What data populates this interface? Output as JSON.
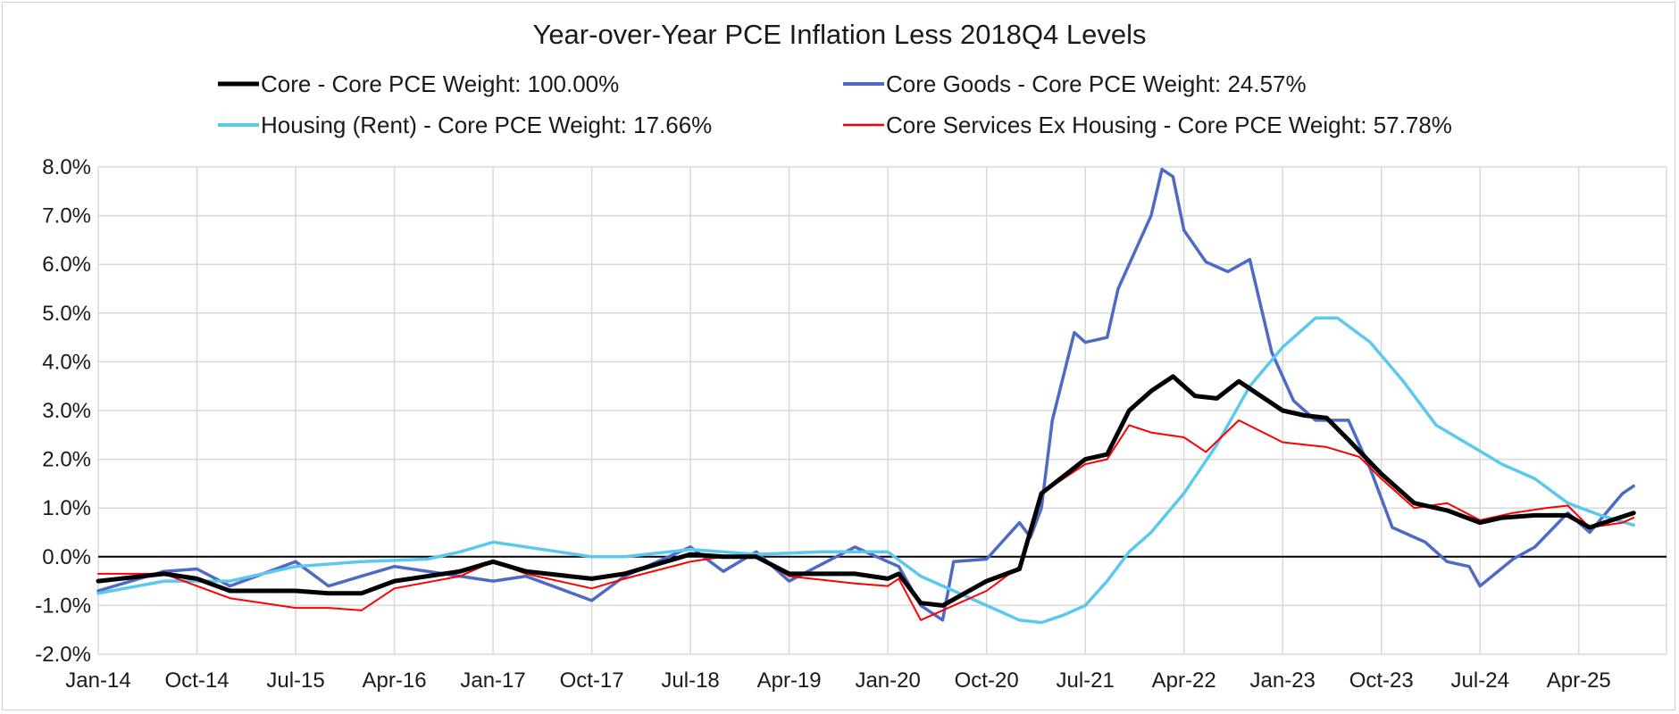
{
  "chart_data": {
    "type": "line",
    "title": "Year-over-Year PCE Inflation Less 2018Q4 Levels",
    "xlabel": "",
    "ylabel": "",
    "ylim": [
      -2.0,
      8.0
    ],
    "xlim": [
      "Jan-14",
      "Dec-25"
    ],
    "y_tick_labels": [
      "8.0%",
      "7.0%",
      "6.0%",
      "5.0%",
      "4.0%",
      "3.0%",
      "2.0%",
      "1.0%",
      "0.0%",
      "-1.0%",
      "-2.0%"
    ],
    "x_tick_labels": [
      "Jan-14",
      "Oct-14",
      "Jul-15",
      "Apr-16",
      "Jan-17",
      "Oct-17",
      "Jul-18",
      "Apr-19",
      "Jan-20",
      "Oct-20",
      "Jul-21",
      "Apr-22",
      "Jan-23",
      "Oct-23",
      "Jul-24",
      "Apr-25"
    ],
    "grid": "both",
    "legend_position": "top",
    "series": [
      {
        "name": "Core - Core PCE Weight: 100.00%",
        "color": "#000000",
        "points": [
          [
            "Jan-14",
            -0.5
          ],
          [
            "Jul-14",
            -0.35
          ],
          [
            "Oct-14",
            -0.45
          ],
          [
            "Jan-15",
            -0.7
          ],
          [
            "Jul-15",
            -0.7
          ],
          [
            "Oct-15",
            -0.75
          ],
          [
            "Jan-16",
            -0.75
          ],
          [
            "Apr-16",
            -0.5
          ],
          [
            "Oct-16",
            -0.3
          ],
          [
            "Jan-17",
            -0.1
          ],
          [
            "Apr-17",
            -0.3
          ],
          [
            "Oct-17",
            -0.45
          ],
          [
            "Jan-18",
            -0.35
          ],
          [
            "Jul-18",
            0.05
          ],
          [
            "Oct-18",
            0.0
          ],
          [
            "Jan-19",
            0.0
          ],
          [
            "Apr-19",
            -0.35
          ],
          [
            "Oct-19",
            -0.35
          ],
          [
            "Jan-20",
            -0.45
          ],
          [
            "Feb-20",
            -0.35
          ],
          [
            "Apr-20",
            -0.95
          ],
          [
            "Jun-20",
            -1.0
          ],
          [
            "Oct-20",
            -0.5
          ],
          [
            "Jan-21",
            -0.25
          ],
          [
            "Mar-21",
            1.3
          ],
          [
            "Jul-21",
            2.0
          ],
          [
            "Sep-21",
            2.1
          ],
          [
            "Nov-21",
            3.0
          ],
          [
            "Jan-22",
            3.4
          ],
          [
            "Mar-22",
            3.7
          ],
          [
            "May-22",
            3.3
          ],
          [
            "Jul-22",
            3.25
          ],
          [
            "Sep-22",
            3.6
          ],
          [
            "Jan-23",
            3.0
          ],
          [
            "Mar-23",
            2.9
          ],
          [
            "May-23",
            2.85
          ],
          [
            "Jul-23",
            2.4
          ],
          [
            "Oct-23",
            1.7
          ],
          [
            "Jan-24",
            1.1
          ],
          [
            "Apr-24",
            0.95
          ],
          [
            "Jul-24",
            0.7
          ],
          [
            "Sep-24",
            0.8
          ],
          [
            "Dec-24",
            0.85
          ],
          [
            "Mar-25",
            0.85
          ],
          [
            "May-25",
            0.6
          ],
          [
            "Jul-25",
            0.75
          ],
          [
            "Sep-25",
            0.9
          ]
        ]
      },
      {
        "name": "Core Goods - Core PCE Weight: 24.57%",
        "color": "#4f69c6",
        "points": [
          [
            "Jan-14",
            -0.7
          ],
          [
            "Jul-14",
            -0.3
          ],
          [
            "Oct-14",
            -0.25
          ],
          [
            "Jan-15",
            -0.6
          ],
          [
            "Jul-15",
            -0.1
          ],
          [
            "Oct-15",
            -0.6
          ],
          [
            "Jan-16",
            -0.4
          ],
          [
            "Apr-16",
            -0.2
          ],
          [
            "Oct-16",
            -0.4
          ],
          [
            "Jan-17",
            -0.5
          ],
          [
            "Apr-17",
            -0.4
          ],
          [
            "Oct-17",
            -0.9
          ],
          [
            "Jan-18",
            -0.4
          ],
          [
            "Jul-18",
            0.2
          ],
          [
            "Oct-18",
            -0.3
          ],
          [
            "Jan-19",
            0.1
          ],
          [
            "Apr-19",
            -0.5
          ],
          [
            "Oct-19",
            0.2
          ],
          [
            "Jan-20",
            -0.1
          ],
          [
            "Feb-20",
            -0.2
          ],
          [
            "Apr-20",
            -1.0
          ],
          [
            "Jun-20",
            -1.3
          ],
          [
            "Jul-20",
            -0.1
          ],
          [
            "Oct-20",
            -0.05
          ],
          [
            "Jan-21",
            0.7
          ],
          [
            "Feb-21",
            0.4
          ],
          [
            "Mar-21",
            1.0
          ],
          [
            "Apr-21",
            2.8
          ],
          [
            "Jun-21",
            4.6
          ],
          [
            "Jul-21",
            4.4
          ],
          [
            "Sep-21",
            4.5
          ],
          [
            "Oct-21",
            5.5
          ],
          [
            "Jan-22",
            7.0
          ],
          [
            "Feb-22",
            7.95
          ],
          [
            "Mar-22",
            7.8
          ],
          [
            "Apr-22",
            6.7
          ],
          [
            "Jun-22",
            6.05
          ],
          [
            "Aug-22",
            5.85
          ],
          [
            "Oct-22",
            6.1
          ],
          [
            "Dec-22",
            4.2
          ],
          [
            "Feb-23",
            3.2
          ],
          [
            "Apr-23",
            2.8
          ],
          [
            "Jul-23",
            2.8
          ],
          [
            "Sep-23",
            1.8
          ],
          [
            "Nov-23",
            0.6
          ],
          [
            "Feb-24",
            0.3
          ],
          [
            "Apr-24",
            -0.1
          ],
          [
            "Jun-24",
            -0.2
          ],
          [
            "Jul-24",
            -0.6
          ],
          [
            "Oct-24",
            -0.05
          ],
          [
            "Dec-24",
            0.2
          ],
          [
            "Mar-25",
            0.9
          ],
          [
            "May-25",
            0.5
          ],
          [
            "Aug-25",
            1.3
          ],
          [
            "Sep-25",
            1.45
          ]
        ]
      },
      {
        "name": "Housing (Rent) - Core PCE Weight: 17.66%",
        "color": "#5bc8ee",
        "points": [
          [
            "Jan-14",
            -0.75
          ],
          [
            "Jul-14",
            -0.5
          ],
          [
            "Jan-15",
            -0.5
          ],
          [
            "Jul-15",
            -0.2
          ],
          [
            "Jan-16",
            -0.1
          ],
          [
            "Jul-16",
            -0.05
          ],
          [
            "Oct-16",
            0.1
          ],
          [
            "Jan-17",
            0.3
          ],
          [
            "Jul-17",
            0.1
          ],
          [
            "Oct-17",
            0.0
          ],
          [
            "Jan-18",
            0.0
          ],
          [
            "Jul-18",
            0.15
          ],
          [
            "Jan-19",
            0.05
          ],
          [
            "Jul-19",
            0.1
          ],
          [
            "Jan-20",
            0.1
          ],
          [
            "Apr-20",
            -0.4
          ],
          [
            "Jul-20",
            -0.7
          ],
          [
            "Oct-20",
            -1.0
          ],
          [
            "Jan-21",
            -1.3
          ],
          [
            "Mar-21",
            -1.35
          ],
          [
            "May-21",
            -1.2
          ],
          [
            "Jul-21",
            -1.0
          ],
          [
            "Sep-21",
            -0.5
          ],
          [
            "Nov-21",
            0.1
          ],
          [
            "Jan-22",
            0.5
          ],
          [
            "Apr-22",
            1.3
          ],
          [
            "Jul-22",
            2.3
          ],
          [
            "Oct-22",
            3.5
          ],
          [
            "Jan-23",
            4.3
          ],
          [
            "Apr-23",
            4.9
          ],
          [
            "Jun-23",
            4.9
          ],
          [
            "Sep-23",
            4.4
          ],
          [
            "Dec-23",
            3.6
          ],
          [
            "Mar-24",
            2.7
          ],
          [
            "Jun-24",
            2.3
          ],
          [
            "Sep-24",
            1.9
          ],
          [
            "Dec-24",
            1.6
          ],
          [
            "Mar-25",
            1.1
          ],
          [
            "Jun-25",
            0.85
          ],
          [
            "Sep-25",
            0.65
          ]
        ]
      },
      {
        "name": "Core Services Ex Housing - Core PCE Weight: 57.78%",
        "color": "#ff0000",
        "points": [
          [
            "Jan-14",
            -0.35
          ],
          [
            "Jul-14",
            -0.35
          ],
          [
            "Oct-14",
            -0.6
          ],
          [
            "Jan-15",
            -0.85
          ],
          [
            "Jul-15",
            -1.05
          ],
          [
            "Oct-15",
            -1.05
          ],
          [
            "Jan-16",
            -1.1
          ],
          [
            "Apr-16",
            -0.65
          ],
          [
            "Oct-16",
            -0.4
          ],
          [
            "Jan-17",
            -0.1
          ],
          [
            "Apr-17",
            -0.35
          ],
          [
            "Oct-17",
            -0.65
          ],
          [
            "Jan-18",
            -0.45
          ],
          [
            "Jul-18",
            -0.1
          ],
          [
            "Oct-18",
            0.0
          ],
          [
            "Jan-19",
            0.0
          ],
          [
            "Apr-19",
            -0.4
          ],
          [
            "Oct-19",
            -0.55
          ],
          [
            "Jan-20",
            -0.6
          ],
          [
            "Feb-20",
            -0.45
          ],
          [
            "Apr-20",
            -1.3
          ],
          [
            "Jun-20",
            -1.1
          ],
          [
            "Oct-20",
            -0.7
          ],
          [
            "Jan-21",
            -0.2
          ],
          [
            "Mar-21",
            1.3
          ],
          [
            "Jul-21",
            1.9
          ],
          [
            "Sep-21",
            2.0
          ],
          [
            "Nov-21",
            2.7
          ],
          [
            "Jan-22",
            2.55
          ],
          [
            "Apr-22",
            2.45
          ],
          [
            "Jun-22",
            2.15
          ],
          [
            "Sep-22",
            2.8
          ],
          [
            "Jan-23",
            2.35
          ],
          [
            "Mar-23",
            2.3
          ],
          [
            "May-23",
            2.25
          ],
          [
            "Aug-23",
            2.05
          ],
          [
            "Oct-23",
            1.6
          ],
          [
            "Jan-24",
            1.0
          ],
          [
            "Apr-24",
            1.1
          ],
          [
            "Jul-24",
            0.75
          ],
          [
            "Oct-24",
            0.9
          ],
          [
            "Jan-25",
            1.0
          ],
          [
            "Mar-25",
            1.05
          ],
          [
            "May-25",
            0.6
          ],
          [
            "Aug-25",
            0.7
          ],
          [
            "Sep-25",
            0.8
          ]
        ]
      }
    ]
  }
}
